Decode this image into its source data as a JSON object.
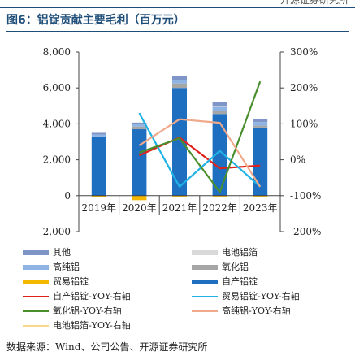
{
  "header": {
    "clipped_text": "开源证券研究所"
  },
  "figure": {
    "title": "图6：铝锭贡献主要毛利（百万元）",
    "source": "数据来源：Wind、公司公告、开源证券研究所"
  },
  "chart_data": {
    "type": "bar",
    "stacked": true,
    "categories": [
      "2019年",
      "2020年",
      "2021年",
      "2022年",
      "2023年"
    ],
    "left_axis": {
      "ylim": [
        -2000,
        8000
      ],
      "ticks": [
        "8,000",
        "6,000",
        "4,000",
        "2,000",
        "0",
        "-2,000"
      ],
      "tick_values": [
        8000,
        6000,
        4000,
        2000,
        0,
        -2000
      ]
    },
    "right_axis": {
      "ylim": [
        -200,
        300
      ],
      "ticks": [
        "300%",
        "200%",
        "100%",
        "0%",
        "-100%",
        "-200%"
      ],
      "tick_values": [
        300,
        200,
        100,
        0,
        -100,
        -200
      ]
    },
    "bar_series": [
      {
        "name": "自产铝锭",
        "color": "#1f6fc0",
        "values": [
          3300,
          3700,
          6000,
          4550,
          3800
        ]
      },
      {
        "name": "氧化铝",
        "color": "#a6a6a6",
        "values": [
          0,
          150,
          250,
          150,
          100
        ]
      },
      {
        "name": "高纯铝",
        "color": "#8fb4e3",
        "values": [
          100,
          120,
          200,
          250,
          200
        ]
      },
      {
        "name": "电池铝箔",
        "color": "#d9d9d9",
        "values": [
          0,
          0,
          0,
          50,
          0
        ]
      },
      {
        "name": "其他",
        "color": "#7f95c8",
        "values": [
          100,
          100,
          200,
          200,
          150
        ]
      },
      {
        "name": "贸易铝锭",
        "color": "#f5b800",
        "values": [
          -100,
          -250,
          -50,
          -50,
          -50
        ]
      }
    ],
    "line_series": [
      {
        "name": "自产铝锭-YOY-右轴",
        "color": "#e0201b",
        "values": [
          null,
          12,
          62,
          -24,
          -16
        ]
      },
      {
        "name": "贸易铝锭-YOY-右轴",
        "color": "#20b2e6",
        "values": [
          null,
          130,
          -75,
          25,
          -75
        ]
      },
      {
        "name": "氧化铝-YOY-右轴",
        "color": "#4a8f2e",
        "values": [
          null,
          20,
          60,
          -90,
          218
        ]
      },
      {
        "name": "高纯铝-YOY-右轴",
        "color": "#f0a98a",
        "values": [
          null,
          40,
          113,
          103,
          -75
        ]
      },
      {
        "name": "电池铝箔-YOY-右轴",
        "color": "#f7d98c",
        "values": [
          null,
          null,
          null,
          null,
          null
        ]
      }
    ],
    "legend": [
      {
        "label": "其他",
        "color": "#7f95c8",
        "kind": "rect"
      },
      {
        "label": "电池铝箔",
        "color": "#d9d9d9",
        "kind": "rect"
      },
      {
        "label": "高纯铝",
        "color": "#8fb4e3",
        "kind": "rect"
      },
      {
        "label": "氧化铝",
        "color": "#a6a6a6",
        "kind": "rect"
      },
      {
        "label": "贸易铝锭",
        "color": "#f5b800",
        "kind": "rect"
      },
      {
        "label": "自产铝锭",
        "color": "#1f6fc0",
        "kind": "rect"
      },
      {
        "label": "自产铝锭-YOY-右轴",
        "color": "#e0201b",
        "kind": "line"
      },
      {
        "label": "贸易铝锭-YOY-右轴",
        "color": "#20b2e6",
        "kind": "line"
      },
      {
        "label": "氧化铝-YOY-右轴",
        "color": "#4a8f2e",
        "kind": "line"
      },
      {
        "label": "高纯铝-YOY-右轴",
        "color": "#f0a98a",
        "kind": "line"
      },
      {
        "label": "电池铝箔-YOY-右轴",
        "color": "#f7d98c",
        "kind": "line"
      }
    ],
    "legend_position": "bottom",
    "grid": false
  }
}
